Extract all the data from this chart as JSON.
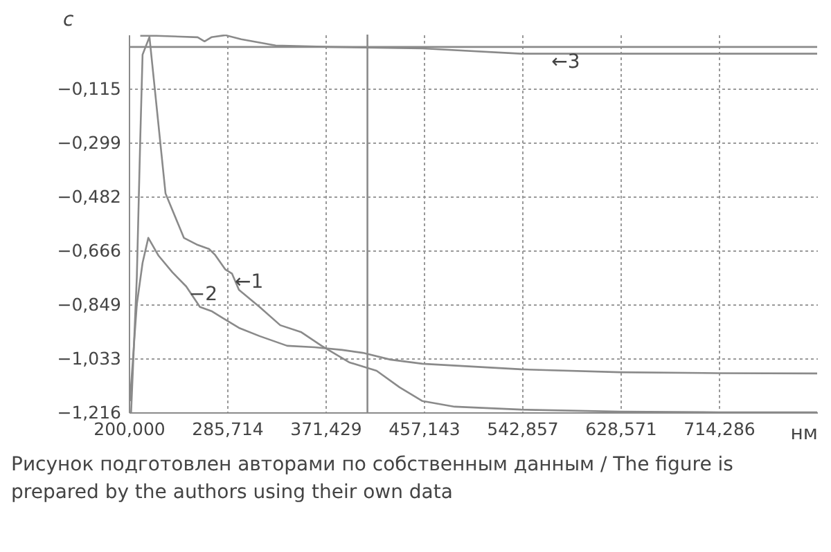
{
  "chart_data": {
    "type": "line",
    "xlabel": "нм",
    "ylabel": "c",
    "xlim": [
      200,
      800
    ],
    "ylim": [
      -1.216,
      0.068
    ],
    "xticks": [
      {
        "value": 200,
        "label": "200,000"
      },
      {
        "value": 285.714,
        "label": "285,714"
      },
      {
        "value": 371.429,
        "label": "371,429"
      },
      {
        "value": 457.143,
        "label": "457,143"
      },
      {
        "value": 542.857,
        "label": "542,857"
      },
      {
        "value": 628.571,
        "label": "628,571"
      },
      {
        "value": 714.286,
        "label": "714,286"
      }
    ],
    "yticks": [
      {
        "value": -1.216,
        "label": "−1,216"
      },
      {
        "value": -1.033,
        "label": "−1,033"
      },
      {
        "value": -0.849,
        "label": "−0,849"
      },
      {
        "value": -0.666,
        "label": "−0,666"
      },
      {
        "value": -0.482,
        "label": "−0,482"
      },
      {
        "value": -0.299,
        "label": "−0,299"
      },
      {
        "value": -0.115,
        "label": "−0,115"
      }
    ],
    "grid": true,
    "line_style": "solid",
    "marker": "none",
    "series": [
      {
        "color": "#8a8a8a",
        "x": [
          202,
          207,
          210,
          212,
          218,
          232,
          248,
          260,
          270,
          275,
          284,
          290,
          296,
          314,
          332,
          350,
          368,
          392,
          416,
          436,
          456,
          484,
          542,
          628,
          714,
          800
        ],
        "values": [
          -1.216,
          -0.755,
          -0.284,
          0.0,
          0.06,
          -0.472,
          -0.623,
          -0.647,
          -0.661,
          -0.68,
          -0.73,
          -0.745,
          -0.8,
          -0.858,
          -0.92,
          -0.943,
          -0.99,
          -1.046,
          -1.075,
          -1.131,
          -1.178,
          -1.197,
          -1.207,
          -1.214,
          -1.216,
          -1.216
        ]
      },
      {
        "color": "#8a8a8a",
        "x": [
          201,
          207,
          212,
          217,
          226,
          238,
          250,
          262,
          272,
          282,
          296,
          314,
          338,
          362,
          386,
          404,
          428,
          456,
          542,
          628,
          714,
          800
        ],
        "values": [
          -1.178,
          -0.849,
          -0.708,
          -0.623,
          -0.684,
          -0.74,
          -0.788,
          -0.858,
          -0.872,
          -0.896,
          -0.929,
          -0.957,
          -0.99,
          -0.995,
          -1.004,
          -1.014,
          -1.037,
          -1.051,
          -1.07,
          -1.08,
          -1.083,
          -1.084
        ]
      },
      {
        "color": "#8a8a8a",
        "x": [
          210,
          224,
          260,
          266,
          272,
          284,
          298,
          328,
          376,
          456,
          542,
          566,
          628,
          714,
          800
        ],
        "values": [
          0.064,
          0.064,
          0.059,
          0.045,
          0.059,
          0.066,
          0.052,
          0.031,
          0.026,
          0.021,
          0.003,
          0.003,
          0.003,
          0.003,
          0.003
        ]
      }
    ],
    "ref_lines": [
      {
        "axis": "x",
        "value": 408,
        "color": "#8a8a8a"
      },
      {
        "axis": "y",
        "value": 0.026,
        "color": "#8a8a8a"
      }
    ],
    "annotations": [
      {
        "text": "←1",
        "x": 290,
        "y": -0.745
      },
      {
        "text": "−2",
        "x": 250,
        "y": -0.788
      },
      {
        "text": "←3",
        "x": 566,
        "y": 0.003
      },
      "Рисунок подготовлен авторами по собственным данным / The figure is prepared by the authors using their own data"
    ]
  }
}
